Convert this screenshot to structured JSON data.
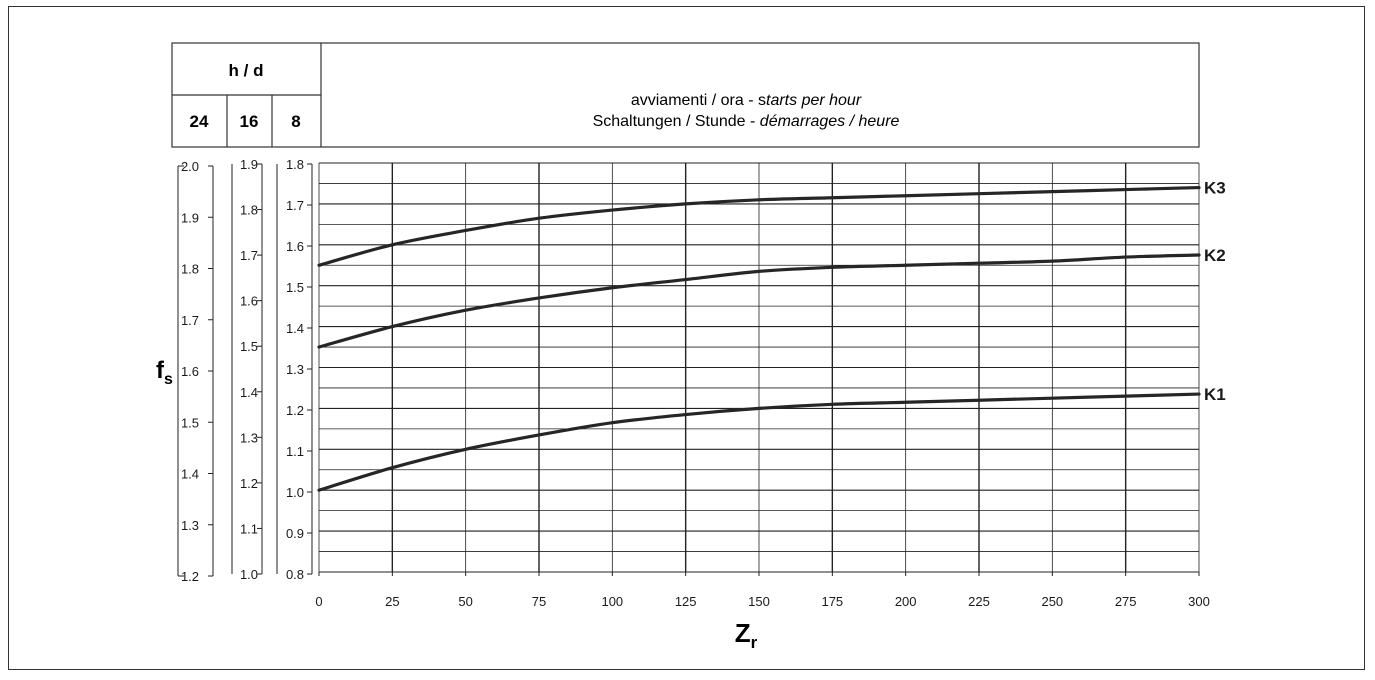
{
  "header": {
    "hd_label": "h / d",
    "hd_cols": [
      "24",
      "16",
      "8"
    ],
    "line1_regular": "avviamenti / ora - s",
    "line1_italic": "tarts per hour",
    "line2_regular": "Schaltungen / Stunde - ",
    "line2_italic": "démarrages / heure"
  },
  "chart_data": {
    "type": "line",
    "x_label_main": "Z",
    "x_label_sub": "r",
    "y_label_main": "f",
    "y_label_sub": "s",
    "x_range": [
      0,
      300
    ],
    "x_ticks": [
      "0",
      "25",
      "50",
      "75",
      "100",
      "125",
      "150",
      "175",
      "200",
      "225",
      "250",
      "275",
      "300"
    ],
    "y_axes": [
      {
        "column": "24",
        "range": [
          1.2,
          2.0
        ],
        "ticks": [
          "2.0",
          "1.9",
          "1.8",
          "1.7",
          "1.6",
          "1.5",
          "1.4",
          "1.3",
          "1.2"
        ]
      },
      {
        "column": "16",
        "range": [
          1.0,
          1.9
        ],
        "ticks": [
          "1.9",
          "1.8",
          "1.7",
          "1.6",
          "1.5",
          "1.4",
          "1.3",
          "1.2",
          "1.1",
          "1.0"
        ]
      },
      {
        "column": "8",
        "range": [
          0.8,
          1.8
        ],
        "ticks": [
          "1.8",
          "1.7",
          "1.6",
          "1.5",
          "1.4",
          "1.3",
          "1.2",
          "1.1",
          "1.0",
          "0.9",
          "0.8"
        ]
      }
    ],
    "grid": true,
    "series": [
      {
        "name": "K3",
        "x": [
          0,
          25,
          50,
          75,
          100,
          125,
          150,
          175,
          200,
          225,
          250,
          275,
          300
        ],
        "y": [
          1.55,
          1.6,
          1.635,
          1.665,
          1.685,
          1.7,
          1.71,
          1.715,
          1.72,
          1.725,
          1.73,
          1.735,
          1.74
        ]
      },
      {
        "name": "K2",
        "x": [
          0,
          25,
          50,
          75,
          100,
          125,
          150,
          175,
          200,
          225,
          250,
          275,
          300
        ],
        "y": [
          1.35,
          1.4,
          1.44,
          1.47,
          1.495,
          1.515,
          1.535,
          1.545,
          1.55,
          1.555,
          1.56,
          1.57,
          1.575
        ]
      },
      {
        "name": "K1",
        "x": [
          0,
          25,
          50,
          75,
          100,
          125,
          150,
          175,
          200,
          225,
          250,
          275,
          300
        ],
        "y": [
          1.0,
          1.055,
          1.1,
          1.135,
          1.165,
          1.185,
          1.2,
          1.21,
          1.215,
          1.22,
          1.225,
          1.23,
          1.235
        ]
      }
    ],
    "line_color": "#262626"
  }
}
